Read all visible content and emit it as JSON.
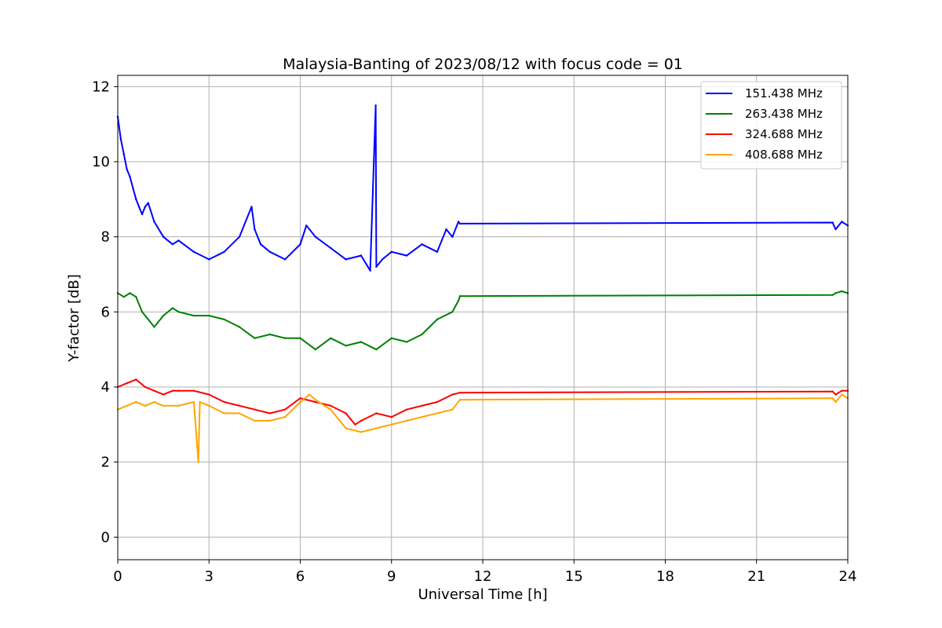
{
  "chart_data": {
    "type": "line",
    "title": "Malaysia-Banting of 2023/08/12 with focus code = 01",
    "xlabel": "Universal Time [h]",
    "ylabel": "Y-factor [dB]",
    "xlim": [
      0,
      24
    ],
    "ylim": [
      -0.6,
      12.3
    ],
    "xticks": [
      0,
      3,
      6,
      9,
      12,
      15,
      18,
      21,
      24
    ],
    "yticks": [
      0,
      2,
      4,
      6,
      8,
      10,
      12
    ],
    "grid": true,
    "legend_position": "top-right",
    "series": [
      {
        "name": "151.438 MHz",
        "color": "#0000ff",
        "x": [
          0,
          0.1,
          0.2,
          0.3,
          0.4,
          0.5,
          0.6,
          0.7,
          0.8,
          0.9,
          1.0,
          1.2,
          1.5,
          1.8,
          2.0,
          2.5,
          3.0,
          3.5,
          4.0,
          4.4,
          4.5,
          4.7,
          5.0,
          5.5,
          6.0,
          6.2,
          6.5,
          7.0,
          7.5,
          8.0,
          8.3,
          8.48,
          8.5,
          8.7,
          9.0,
          9.5,
          10.0,
          10.5,
          10.8,
          11.0,
          11.2,
          11.25,
          23.5,
          23.6,
          23.8,
          24.0
        ],
        "y": [
          11.2,
          10.6,
          10.2,
          9.8,
          9.6,
          9.3,
          9.0,
          8.8,
          8.6,
          8.8,
          8.9,
          8.4,
          8.0,
          7.8,
          7.9,
          7.6,
          7.4,
          7.6,
          8.0,
          8.8,
          8.2,
          7.8,
          7.6,
          7.4,
          7.8,
          8.3,
          8.0,
          7.7,
          7.4,
          7.5,
          7.1,
          11.5,
          7.2,
          7.4,
          7.6,
          7.5,
          7.8,
          7.6,
          8.2,
          8.0,
          8.4,
          8.35,
          8.38,
          8.2,
          8.4,
          8.3
        ]
      },
      {
        "name": "263.438 MHz",
        "color": "#008000",
        "x": [
          0,
          0.2,
          0.4,
          0.6,
          0.8,
          1.0,
          1.2,
          1.5,
          1.8,
          2.0,
          2.5,
          3.0,
          3.5,
          4.0,
          4.5,
          5.0,
          5.5,
          6.0,
          6.5,
          7.0,
          7.5,
          8.0,
          8.5,
          9.0,
          9.5,
          10.0,
          10.5,
          11.0,
          11.2,
          11.25,
          23.5,
          23.6,
          23.8,
          24.0
        ],
        "y": [
          6.5,
          6.4,
          6.5,
          6.4,
          6.0,
          5.8,
          5.6,
          5.9,
          6.1,
          6.0,
          5.9,
          5.9,
          5.8,
          5.6,
          5.3,
          5.4,
          5.3,
          5.3,
          5.0,
          5.3,
          5.1,
          5.2,
          5.0,
          5.3,
          5.2,
          5.4,
          5.8,
          6.0,
          6.3,
          6.42,
          6.45,
          6.5,
          6.55,
          6.5
        ]
      },
      {
        "name": "324.688 MHz",
        "color": "#ff0000",
        "x": [
          0,
          0.3,
          0.6,
          0.9,
          1.2,
          1.5,
          1.8,
          2.0,
          2.5,
          3.0,
          3.5,
          4.0,
          4.5,
          5.0,
          5.5,
          6.0,
          6.5,
          7.0,
          7.5,
          7.8,
          8.0,
          8.5,
          9.0,
          9.5,
          10.0,
          10.5,
          11.0,
          11.25,
          23.5,
          23.6,
          23.8,
          24.0
        ],
        "y": [
          4.0,
          4.1,
          4.2,
          4.0,
          3.9,
          3.8,
          3.9,
          3.9,
          3.9,
          3.8,
          3.6,
          3.5,
          3.4,
          3.3,
          3.4,
          3.7,
          3.6,
          3.5,
          3.3,
          3.0,
          3.1,
          3.3,
          3.2,
          3.4,
          3.5,
          3.6,
          3.8,
          3.85,
          3.88,
          3.8,
          3.9,
          3.9
        ]
      },
      {
        "name": "408.688 MHz",
        "color": "#ffa500",
        "x": [
          0,
          0.3,
          0.6,
          0.9,
          1.2,
          1.5,
          2.0,
          2.5,
          2.65,
          2.7,
          3.0,
          3.5,
          4.0,
          4.5,
          5.0,
          5.5,
          6.0,
          6.3,
          6.6,
          7.0,
          7.5,
          8.0,
          8.5,
          9.0,
          9.5,
          10.0,
          10.5,
          11.0,
          11.25,
          23.5,
          23.6,
          23.8,
          24.0
        ],
        "y": [
          3.4,
          3.5,
          3.6,
          3.5,
          3.6,
          3.5,
          3.5,
          3.6,
          2.0,
          3.6,
          3.5,
          3.3,
          3.3,
          3.1,
          3.1,
          3.2,
          3.6,
          3.8,
          3.6,
          3.4,
          2.9,
          2.8,
          2.9,
          3.0,
          3.1,
          3.2,
          3.3,
          3.4,
          3.66,
          3.7,
          3.6,
          3.8,
          3.7
        ]
      }
    ]
  }
}
